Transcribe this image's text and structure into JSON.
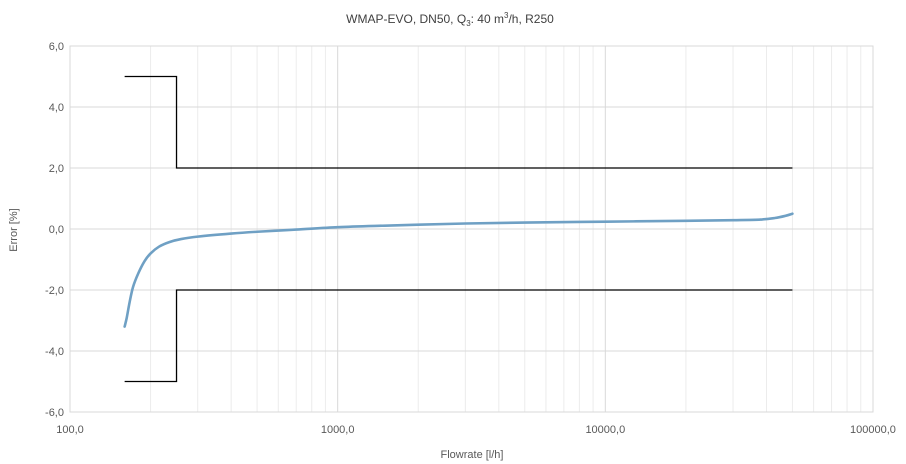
{
  "chart_data": {
    "type": "line",
    "title": {
      "prefix": "WMAP-EVO,  DN50, Q",
      "q_sub": "3",
      "mid": ": 40 m",
      "exp": "3",
      "suffix": "/h, R250"
    },
    "xlabel": "Flowrate [l/h]",
    "ylabel": "Error [%]",
    "x_scale": "log",
    "xlim": [
      100,
      100000
    ],
    "ylim": [
      -6,
      6
    ],
    "x_ticks": [
      100,
      1000,
      10000,
      100000
    ],
    "x_tick_labels": [
      "100,0",
      "1000,0",
      "10000,0",
      "100000,0"
    ],
    "y_ticks": [
      -6,
      -4,
      -2,
      0,
      2,
      4,
      6
    ],
    "y_tick_labels": [
      "-6,0",
      "-4,0",
      "-2,0",
      "0,0",
      "2,0",
      "4,0",
      "6,0"
    ],
    "grid": {
      "major": true,
      "minor_x": true
    },
    "legend": "none",
    "series": [
      {
        "kind": "measured",
        "color": "#6fa0c4",
        "points": [
          [
            160,
            -3.2
          ],
          [
            163,
            -2.9
          ],
          [
            167,
            -2.4
          ],
          [
            172,
            -1.9
          ],
          [
            180,
            -1.45
          ],
          [
            190,
            -1.05
          ],
          [
            200,
            -0.8
          ],
          [
            215,
            -0.58
          ],
          [
            235,
            -0.43
          ],
          [
            260,
            -0.33
          ],
          [
            300,
            -0.25
          ],
          [
            400,
            -0.15
          ],
          [
            500,
            -0.09
          ],
          [
            700,
            -0.02
          ],
          [
            1000,
            0.06
          ],
          [
            1500,
            0.11
          ],
          [
            2000,
            0.14
          ],
          [
            3000,
            0.18
          ],
          [
            5000,
            0.21
          ],
          [
            10000,
            0.24
          ],
          [
            20000,
            0.27
          ],
          [
            30000,
            0.29
          ],
          [
            38000,
            0.31
          ],
          [
            43000,
            0.36
          ],
          [
            47000,
            0.43
          ],
          [
            50000,
            0.5
          ]
        ]
      },
      {
        "kind": "upper-limit",
        "color": "#000000",
        "points": [
          [
            160,
            5
          ],
          [
            250,
            5
          ],
          [
            250,
            2
          ],
          [
            50000,
            2
          ]
        ]
      },
      {
        "kind": "lower-limit",
        "color": "#000000",
        "points": [
          [
            160,
            -5
          ],
          [
            250,
            -5
          ],
          [
            250,
            -2
          ],
          [
            50000,
            -2
          ]
        ]
      }
    ]
  }
}
